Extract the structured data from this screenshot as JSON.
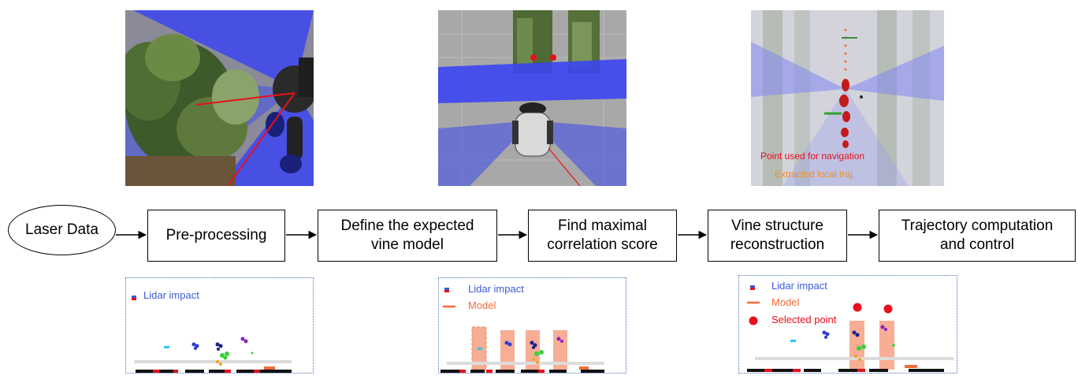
{
  "flow": {
    "start": "Laser Data",
    "steps": [
      "Pre-processing",
      "Define the expected\nvine model",
      "Find maximal\ncorrelation score",
      "Vine structure\nreconstruction",
      "Trajectory computation\nand control"
    ]
  },
  "top_images": {
    "third": {
      "annotation_red": "Point used for navigation",
      "annotation_orange": "Extracted local traj."
    }
  },
  "panels": {
    "legend_lidar": "Lidar impact",
    "legend_model": "Model",
    "legend_selected": "Selected point"
  },
  "colors": {
    "laser_blue": "#3b45f0",
    "model_orange": "#f26b3a",
    "selected_red": "#e8101a",
    "legend_blue_text": "#3a5bd9",
    "annotation_orange": "#f0901e"
  }
}
